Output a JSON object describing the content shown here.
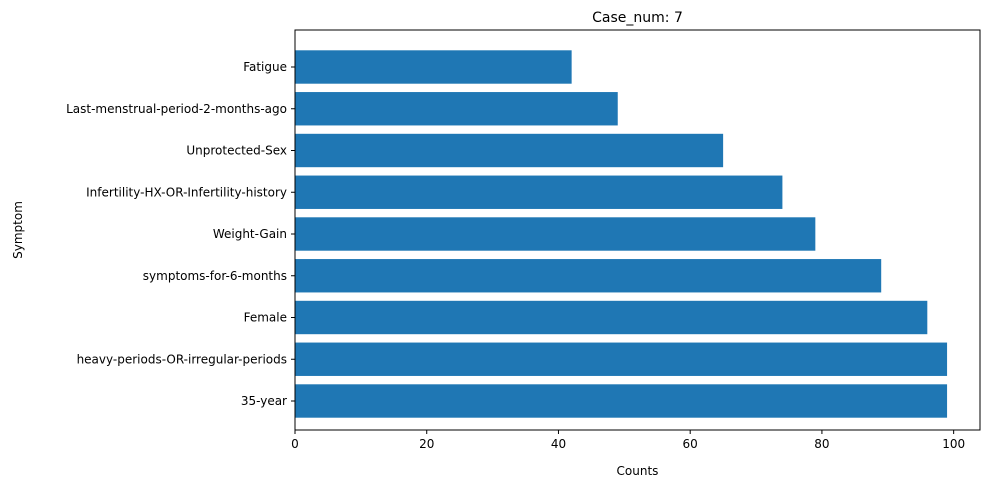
{
  "chart_data": {
    "type": "bar",
    "orientation": "horizontal",
    "title": "Case_num: 7",
    "xlabel": "Counts",
    "ylabel": "Symptom",
    "categories": [
      "35-year",
      "heavy-periods-OR-irregular-periods",
      "Female",
      "symptoms-for-6-months",
      "Weight-Gain",
      "Infertility-HX-OR-Infertility-history",
      "Unprotected-Sex",
      "Last-menstrual-period-2-months-ago",
      "Fatigue"
    ],
    "values": [
      99,
      99,
      96,
      89,
      79,
      74,
      65,
      49,
      42
    ],
    "xlim": [
      0,
      104
    ],
    "xticks": [
      "0",
      "20",
      "40",
      "60",
      "80",
      "100"
    ],
    "bar_color": "#1f77b4",
    "grid": false
  }
}
